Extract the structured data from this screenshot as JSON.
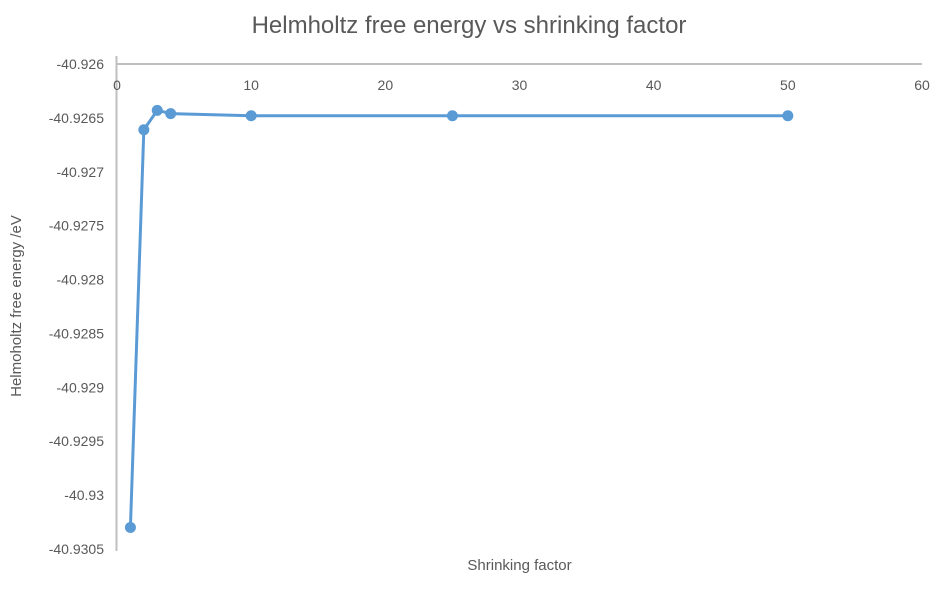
{
  "chart_data": {
    "type": "line",
    "title": "Helmholtz free energy vs shrinking factor",
    "xlabel": "Shrinking factor",
    "ylabel": "Helmoholtz free energy /eV",
    "x": [
      1,
      2,
      3,
      4,
      10,
      25,
      50
    ],
    "y": [
      -40.9303,
      -40.92661,
      -40.92643,
      -40.92646,
      -40.92648,
      -40.92648,
      -40.92648
    ],
    "xlim": [
      0,
      60
    ],
    "ylim": [
      -40.9305,
      -40.926
    ],
    "x_ticks": [
      0,
      10,
      20,
      30,
      40,
      50,
      60
    ],
    "x_tick_labels": [
      "0",
      "10",
      "20",
      "30",
      "40",
      "50",
      "60"
    ],
    "y_ticks": [
      -40.926,
      -40.9265,
      -40.927,
      -40.9275,
      -40.928,
      -40.9285,
      -40.929,
      -40.9295,
      -40.93,
      -40.9305
    ],
    "y_tick_labels": [
      "-40.926",
      "-40.9265",
      "-40.927",
      "-40.9275",
      "-40.928",
      "-40.9285",
      "-40.929",
      "-40.9295",
      "-40.93",
      "-40.9305"
    ],
    "grid": false,
    "legend_visible": false,
    "marker": "circle",
    "colors": {
      "line": "#5B9BD5",
      "axis": "#BFBFBF",
      "text": "#595959",
      "background": "#FFFFFF"
    }
  }
}
